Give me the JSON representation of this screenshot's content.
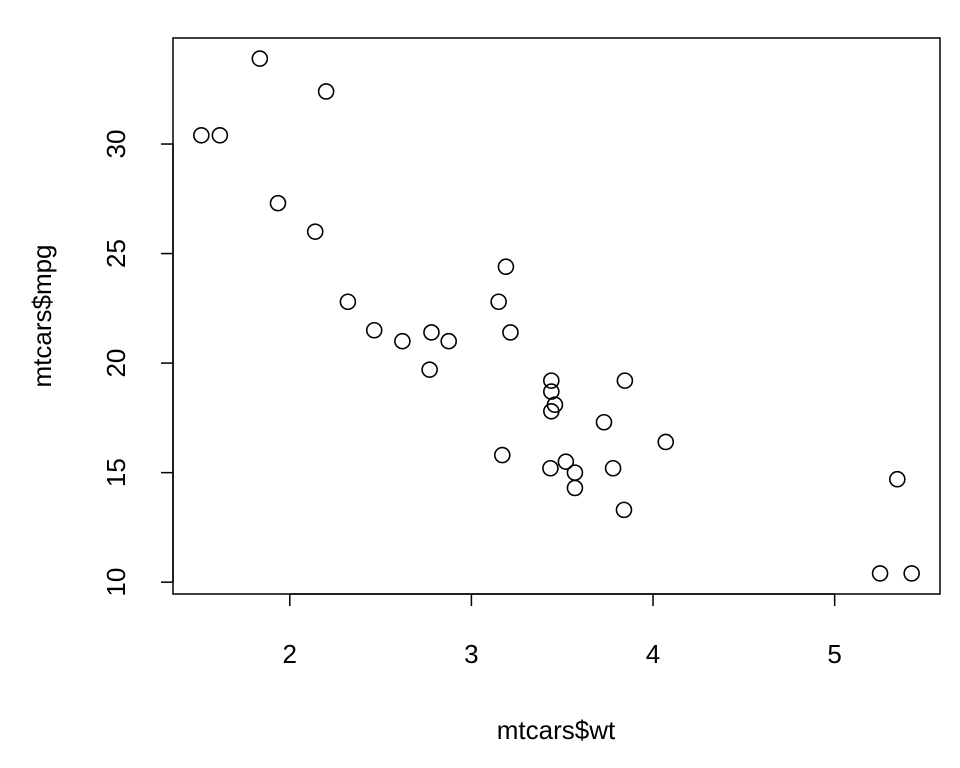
{
  "chart_data": {
    "type": "scatter",
    "x_label": "mtcars$wt",
    "y_label": "mtcars$mpg",
    "x": [
      2.62,
      2.875,
      2.32,
      3.215,
      3.44,
      3.46,
      3.57,
      3.19,
      3.15,
      3.44,
      3.44,
      4.07,
      3.73,
      3.78,
      5.25,
      5.424,
      5.345,
      2.2,
      1.615,
      1.835,
      2.465,
      3.52,
      3.435,
      3.84,
      3.845,
      1.935,
      2.14,
      1.513,
      3.17,
      2.77,
      3.57,
      2.78
    ],
    "values": [
      21.0,
      21.0,
      22.8,
      21.4,
      18.7,
      18.1,
      14.3,
      24.4,
      22.8,
      19.2,
      17.8,
      16.4,
      17.3,
      15.2,
      10.4,
      10.4,
      14.7,
      32.4,
      30.4,
      33.9,
      21.5,
      15.5,
      15.2,
      13.3,
      19.2,
      27.3,
      26.0,
      30.4,
      15.8,
      19.7,
      15.0,
      21.4
    ],
    "color": "#000000",
    "xlim": [
      1.357,
      5.58
    ],
    "ylim": [
      9.46,
      34.84
    ],
    "xticks": [
      2,
      3,
      4,
      5
    ],
    "yticks": [
      10,
      15,
      20,
      25,
      30
    ]
  }
}
